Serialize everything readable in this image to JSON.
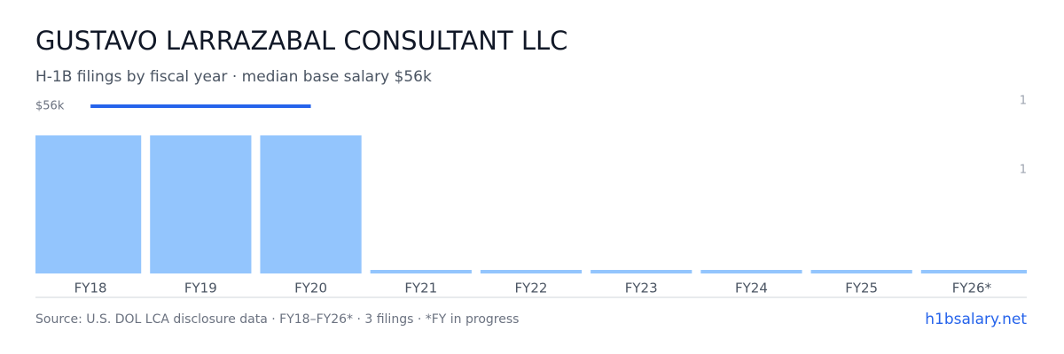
{
  "chart_data": {
    "type": "bar",
    "title": "GUSTAVO LARRAZABAL CONSULTANT LLC",
    "subtitle": "H-1B filings by fiscal year · median base salary $56k",
    "categories": [
      "FY18",
      "FY19",
      "FY20",
      "FY21",
      "FY22",
      "FY23",
      "FY24",
      "FY25",
      "FY26*"
    ],
    "series": [
      {
        "name": "H-1B filings",
        "color": "#93c5fd",
        "values": [
          1,
          1,
          1,
          0,
          0,
          0,
          0,
          0,
          0
        ]
      },
      {
        "name": "Median base salary",
        "color": "#2563eb",
        "axis": "y2",
        "values": [
          56000,
          56000,
          56000,
          null,
          null,
          null,
          null,
          null,
          null
        ]
      }
    ],
    "ylim": [
      0,
      1.25
    ],
    "yticks": [
      {
        "value": 0.75,
        "label": "1"
      },
      {
        "value": 1.25,
        "label": "1"
      }
    ],
    "y2lim": [
      0,
      56000
    ],
    "y2ticks": [
      {
        "value": 56000,
        "label": "$56k"
      }
    ],
    "grid": false,
    "source": "Source: U.S. DOL LCA disclosure data · FY18–FY26* · 3 filings · *FY in progress",
    "site": "h1bsalary.net"
  }
}
